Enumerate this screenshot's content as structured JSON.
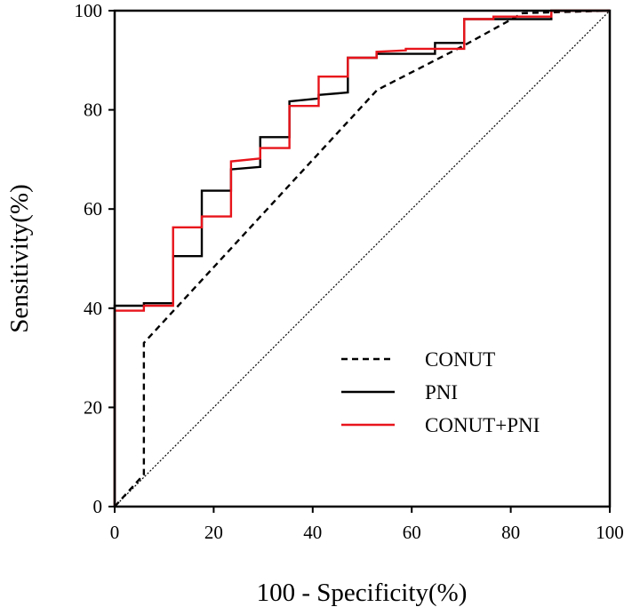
{
  "chart_data": {
    "type": "line",
    "title": "",
    "xlabel": "100 - Specificity(%)",
    "ylabel": "Sensitivity(%)",
    "xlim": [
      0,
      100
    ],
    "ylim": [
      0,
      100
    ],
    "xticks": [
      "0",
      "20",
      "40",
      "60",
      "80",
      "100"
    ],
    "yticks": [
      "0",
      "20",
      "40",
      "60",
      "80",
      "100"
    ],
    "grid": false,
    "legend_position": "bottom-right",
    "reference_line": {
      "name": "reference",
      "x": [
        0,
        100
      ],
      "y": [
        0,
        100
      ],
      "color": "#000000",
      "style": "dotted"
    },
    "series": [
      {
        "name": "CONUT",
        "color": "#000000",
        "style": "dashed",
        "x": [
          0,
          5.9,
          5.9,
          53,
          70.6,
          82.4,
          100
        ],
        "y": [
          0,
          6.5,
          33,
          84,
          93,
          99.5,
          100
        ]
      },
      {
        "name": "PNI",
        "color": "#000000",
        "style": "solid",
        "x": [
          0,
          0,
          5.9,
          5.9,
          11.8,
          11.8,
          17.6,
          17.6,
          23.5,
          23.5,
          29.4,
          29.4,
          35.3,
          35.3,
          41.2,
          41.2,
          47.1,
          47.1,
          52.9,
          52.9,
          64.7,
          64.7,
          70.6,
          70.6,
          88.2,
          88.2,
          100
        ],
        "y": [
          0,
          40.5,
          40.5,
          41,
          41,
          50.5,
          50.5,
          63.7,
          63.7,
          68,
          68.5,
          74.5,
          74.5,
          81.7,
          82.3,
          83,
          83.5,
          90.5,
          90.5,
          91.3,
          91.3,
          93.5,
          93.5,
          98.3,
          98.3,
          100,
          100
        ]
      },
      {
        "name": "CONUT+PNI",
        "color": "#e8141b",
        "style": "solid",
        "x": [
          0,
          0,
          5.9,
          5.9,
          11.8,
          11.8,
          17.6,
          17.6,
          23.5,
          23.5,
          29.4,
          29.4,
          35.3,
          35.3,
          41.2,
          41.2,
          47.1,
          47.1,
          52.9,
          52.9,
          58.8,
          58.8,
          70.6,
          70.6,
          76.5,
          76.5,
          88.2,
          88.2,
          100
        ],
        "y": [
          0,
          39.5,
          39.5,
          40.5,
          40.5,
          56.3,
          56.3,
          58.5,
          58.5,
          69.6,
          70.2,
          72.3,
          72.3,
          80.8,
          80.8,
          86.7,
          86.7,
          90.5,
          90.5,
          91.7,
          92,
          92.3,
          92.3,
          98.3,
          98.3,
          98.8,
          98.8,
          100,
          100
        ]
      }
    ]
  }
}
